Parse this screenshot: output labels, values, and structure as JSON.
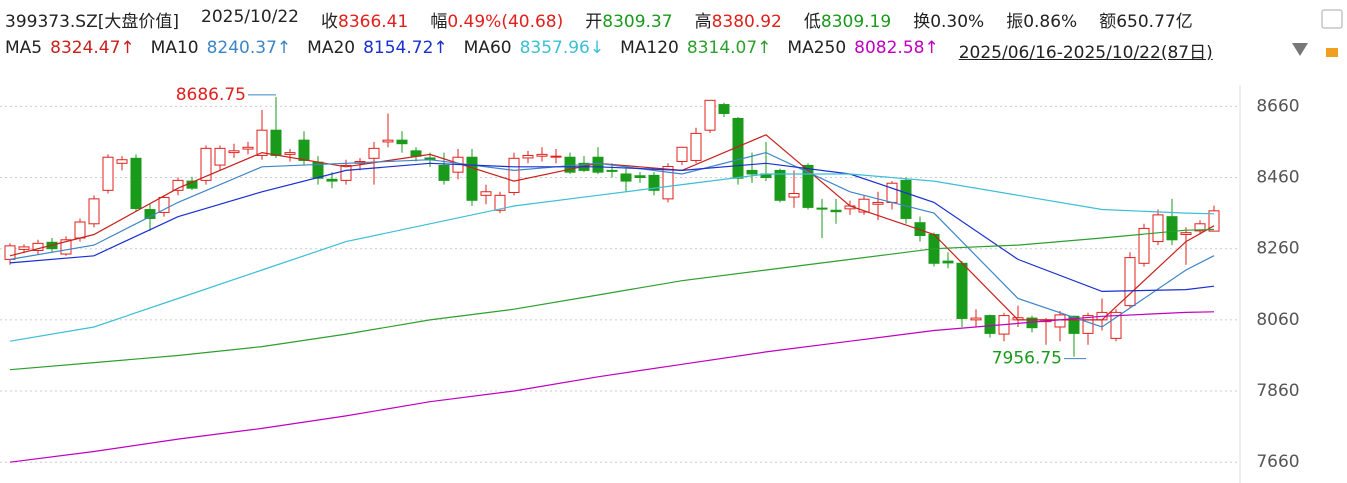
{
  "header": {
    "title": "399373.SZ[大盘价值]",
    "date": "2025/10/22",
    "stats": [
      {
        "label": "收",
        "value": "8366.41",
        "color": "#e0201c"
      },
      {
        "label": "幅",
        "value": "0.49%(40.68)",
        "color": "#e0201c"
      },
      {
        "label": "开",
        "value": "8309.37",
        "color": "#1a9a1a"
      },
      {
        "label": "高",
        "value": "8380.92",
        "color": "#e0201c"
      },
      {
        "label": "低",
        "value": "8309.19",
        "color": "#1a9a1a"
      },
      {
        "label": "换",
        "value": "0.30%",
        "color": "#222222"
      },
      {
        "label": "振",
        "value": "0.86%",
        "color": "#222222"
      },
      {
        "label": "额",
        "value": "650.77亿",
        "color": "#222222"
      }
    ]
  },
  "chart_data": {
    "type": "candlestick",
    "range": "2025/06/16-2025/10/22(87日)",
    "up_color": "#e0201c",
    "down_color": "#1a9a1a",
    "ylim": [
      7610,
      8720
    ],
    "yticks": [
      7660,
      7860,
      8060,
      8260,
      8460,
      8660
    ],
    "grid": true,
    "open": [
      8230,
      8258,
      8255,
      8278,
      8245,
      8290,
      8330,
      8424,
      8500,
      8514,
      8370,
      8362,
      8424,
      8450,
      8452,
      8495,
      8530,
      8540,
      8522,
      8593,
      8525,
      8565,
      8503,
      8455,
      8452,
      8500,
      8514,
      8560,
      8565,
      8535,
      8515,
      8494,
      8475,
      8517,
      8410,
      8368,
      8418,
      8515,
      8520,
      8518,
      8517,
      8500,
      8517,
      8480,
      8470,
      8465,
      8466,
      8400,
      8505,
      8508,
      8593,
      8665,
      8626,
      8480,
      8470,
      8480,
      8405,
      8494,
      8374,
      8368,
      8372,
      8363,
      8385,
      8390,
      8452,
      8333,
      8300,
      8225,
      8219,
      8060,
      8072,
      8020,
      8060,
      8065,
      8055,
      8040,
      8070,
      8022,
      8060,
      8008,
      8100,
      8219,
      8280,
      8350,
      8300,
      8310,
      8309.37
    ],
    "high": [
      8275,
      8272,
      8285,
      8290,
      8295,
      8345,
      8410,
      8525,
      8520,
      8525,
      8385,
      8410,
      8460,
      8462,
      8550,
      8550,
      8555,
      8560,
      8650,
      8686.75,
      8540,
      8590,
      8520,
      8475,
      8510,
      8515,
      8560,
      8640,
      8590,
      8545,
      8530,
      8530,
      8540,
      8540,
      8440,
      8420,
      8530,
      8535,
      8545,
      8540,
      8530,
      8520,
      8545,
      8500,
      8485,
      8475,
      8475,
      8500,
      8545,
      8600,
      8677,
      8670,
      8630,
      8530,
      8560,
      8485,
      8480,
      8500,
      8400,
      8400,
      8395,
      8410,
      8420,
      8450,
      8460,
      8350,
      8305,
      8250,
      8225,
      8090,
      8075,
      8080,
      8100,
      8072,
      8065,
      8085,
      8072,
      8080,
      8120,
      8090,
      8250,
      8330,
      8370,
      8400,
      8320,
      8340,
      8380.92
    ],
    "low": [
      8215,
      8248,
      8245,
      8250,
      8240,
      8280,
      8320,
      8415,
      8480,
      8365,
      8310,
      8350,
      8410,
      8425,
      8440,
      8480,
      8515,
      8525,
      8510,
      8515,
      8505,
      8495,
      8440,
      8430,
      8440,
      8480,
      8440,
      8545,
      8530,
      8505,
      8490,
      8440,
      8455,
      8380,
      8385,
      8360,
      8410,
      8500,
      8505,
      8500,
      8470,
      8475,
      8470,
      8460,
      8420,
      8445,
      8410,
      8390,
      8495,
      8500,
      8585,
      8630,
      8440,
      8445,
      8450,
      8390,
      8375,
      8370,
      8290,
      8330,
      8355,
      8355,
      8340,
      8370,
      8330,
      8280,
      8210,
      8205,
      8040,
      8040,
      8010,
      8000,
      8040,
      8025,
      7990,
      8000,
      7956.75,
      7990,
      8030,
      8000,
      8095,
      8210,
      8270,
      8270,
      8215,
      8300,
      8309.19
    ],
    "close": [
      8268,
      8265,
      8275,
      8260,
      8285,
      8335,
      8400,
      8517,
      8510,
      8373,
      8345,
      8404,
      8452,
      8430,
      8542,
      8542,
      8535,
      8545,
      8593,
      8522,
      8530,
      8508,
      8458,
      8450,
      8494,
      8505,
      8542,
      8565,
      8555,
      8520,
      8510,
      8452,
      8517,
      8396,
      8420,
      8410,
      8514,
      8522,
      8525,
      8520,
      8475,
      8480,
      8475,
      8478,
      8450,
      8460,
      8424,
      8491,
      8545,
      8584,
      8677,
      8640,
      8458,
      8470,
      8460,
      8396,
      8415,
      8376,
      8372,
      8364,
      8380,
      8399,
      8390,
      8444,
      8345,
      8297,
      8219,
      8220,
      8064,
      8065,
      8022,
      8072,
      8066,
      8038,
      8060,
      8074,
      8022,
      8072,
      8081,
      8081,
      8235,
      8317,
      8355,
      8285,
      8305,
      8330,
      8366.41
    ],
    "series": [
      {
        "name": "MA5",
        "legend_label": "8324.47↑",
        "color": "#c8201c",
        "x": [
          0,
          6,
          12,
          18,
          24,
          30,
          36,
          42,
          48,
          54,
          60,
          66,
          72,
          78,
          84,
          86
        ],
        "values": [
          8240,
          8300,
          8430,
          8530,
          8490,
          8525,
          8450,
          8500,
          8480,
          8580,
          8380,
          8300,
          8060,
          8060,
          8280,
          8324.47
        ]
      },
      {
        "name": "MA10",
        "legend_label": "8240.37↑",
        "color": "#3d85c6",
        "x": [
          0,
          6,
          12,
          18,
          24,
          30,
          36,
          42,
          48,
          54,
          60,
          66,
          72,
          78,
          84,
          86
        ],
        "values": [
          8230,
          8270,
          8390,
          8490,
          8500,
          8510,
          8480,
          8500,
          8470,
          8530,
          8420,
          8360,
          8120,
          8040,
          8200,
          8240.37
        ]
      },
      {
        "name": "MA20",
        "legend_label": "8154.72↑",
        "color": "#1a2fd0",
        "x": [
          0,
          6,
          12,
          18,
          24,
          30,
          36,
          42,
          48,
          54,
          60,
          66,
          72,
          78,
          84,
          86
        ],
        "values": [
          8220,
          8240,
          8350,
          8420,
          8480,
          8500,
          8490,
          8490,
          8480,
          8500,
          8470,
          8390,
          8230,
          8140,
          8145,
          8154.72
        ]
      },
      {
        "name": "MA60",
        "legend_label": "8357.96↓",
        "color": "#3bbfd6",
        "x": [
          0,
          6,
          12,
          18,
          24,
          30,
          36,
          42,
          48,
          54,
          60,
          66,
          72,
          78,
          84,
          86
        ],
        "values": [
          8000,
          8040,
          8120,
          8200,
          8280,
          8330,
          8380,
          8410,
          8440,
          8470,
          8470,
          8450,
          8410,
          8370,
          8360,
          8357.96
        ]
      },
      {
        "name": "MA120",
        "legend_label": "8314.07↑",
        "color": "#2ca02c",
        "x": [
          0,
          6,
          12,
          18,
          24,
          30,
          36,
          42,
          48,
          54,
          60,
          66,
          72,
          78,
          84,
          86
        ],
        "values": [
          7920,
          7940,
          7960,
          7985,
          8020,
          8060,
          8090,
          8130,
          8170,
          8200,
          8230,
          8260,
          8270,
          8290,
          8312,
          8314.07
        ]
      },
      {
        "name": "MA250",
        "legend_label": "8082.58↑",
        "color": "#c000c0",
        "x": [
          0,
          6,
          12,
          18,
          24,
          30,
          36,
          42,
          48,
          54,
          60,
          66,
          72,
          78,
          84,
          86
        ],
        "values": [
          7660,
          7690,
          7725,
          7755,
          7790,
          7830,
          7860,
          7900,
          7935,
          7970,
          8000,
          8030,
          8050,
          8070,
          8081,
          8082.58
        ]
      }
    ]
  }
}
